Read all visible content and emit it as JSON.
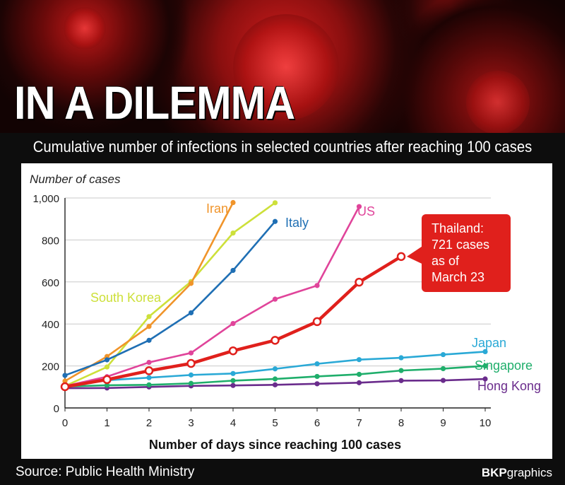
{
  "header": {
    "title": "IN A DILEMMA",
    "subtitle": "Cumulative number of infections in selected countries after reaching 100 cases"
  },
  "footer": {
    "source": "Source: Public Health Ministry",
    "brand_bold": "BKP",
    "brand_rest": "graphics"
  },
  "chart_data": {
    "type": "line",
    "xlabel": "Number of days since reaching 100 cases",
    "ylabel": "Number of cases",
    "xlim": [
      0,
      10
    ],
    "ylim": [
      0,
      1000
    ],
    "x_ticks": [
      "0",
      "1",
      "2",
      "3",
      "4",
      "5",
      "6",
      "7",
      "8",
      "9",
      "10"
    ],
    "y_ticks": [
      {
        "value": 0,
        "label": "0"
      },
      {
        "value": 200,
        "label": "200"
      },
      {
        "value": 400,
        "label": "400"
      },
      {
        "value": 600,
        "label": "600"
      },
      {
        "value": 800,
        "label": "800"
      },
      {
        "value": 1000,
        "label": "1,000"
      }
    ],
    "grid": "horizontal",
    "annotation": {
      "lines": [
        "Thailand:",
        "721 cases",
        "as of",
        "March 23"
      ],
      "color": "#e0201c"
    },
    "series": [
      {
        "name": "South Korea",
        "color": "#cde03a",
        "x": [
          0,
          1,
          2,
          3,
          4,
          5
        ],
        "y": [
          104,
          195,
          435,
          602,
          833,
          977
        ]
      },
      {
        "name": "Iran",
        "color": "#f0942a",
        "x": [
          0,
          1,
          2,
          3,
          4
        ],
        "y": [
          128,
          245,
          388,
          593,
          978
        ]
      },
      {
        "name": "Italy",
        "color": "#1f6fb4",
        "x": [
          0,
          1,
          2,
          3,
          4,
          5
        ],
        "y": [
          155,
          229,
          322,
          453,
          655,
          888
        ]
      },
      {
        "name": "US",
        "color": "#e0449a",
        "x": [
          0,
          1,
          2,
          3,
          4,
          5,
          6,
          7
        ],
        "y": [
          104,
          149,
          217,
          262,
          402,
          518,
          583,
          959
        ]
      },
      {
        "name": "Japan",
        "color": "#2aa9d6",
        "x": [
          0,
          1,
          2,
          3,
          4,
          5,
          6,
          7,
          8,
          9,
          10
        ],
        "y": [
          105,
          132,
          144,
          157,
          164,
          186,
          210,
          230,
          239,
          254,
          268
        ]
      },
      {
        "name": "Singapore",
        "color": "#1fae6b",
        "x": [
          0,
          1,
          2,
          3,
          4,
          5,
          6,
          7,
          8,
          9,
          10
        ],
        "y": [
          102,
          108,
          110,
          117,
          130,
          138,
          150,
          160,
          178,
          187,
          200
        ]
      },
      {
        "name": "Hong Kong",
        "color": "#6a2c8c",
        "x": [
          0,
          1,
          2,
          3,
          4,
          5,
          6,
          7,
          8,
          9,
          10
        ],
        "y": [
          94,
          95,
          100,
          105,
          107,
          110,
          115,
          120,
          130,
          131,
          138
        ]
      },
      {
        "name": "Thailand",
        "color": "#e0201c",
        "x": [
          0,
          1,
          2,
          3,
          4,
          5,
          6,
          7,
          8
        ],
        "y": [
          101,
          135,
          177,
          212,
          272,
          322,
          411,
          599,
          721
        ]
      }
    ]
  }
}
